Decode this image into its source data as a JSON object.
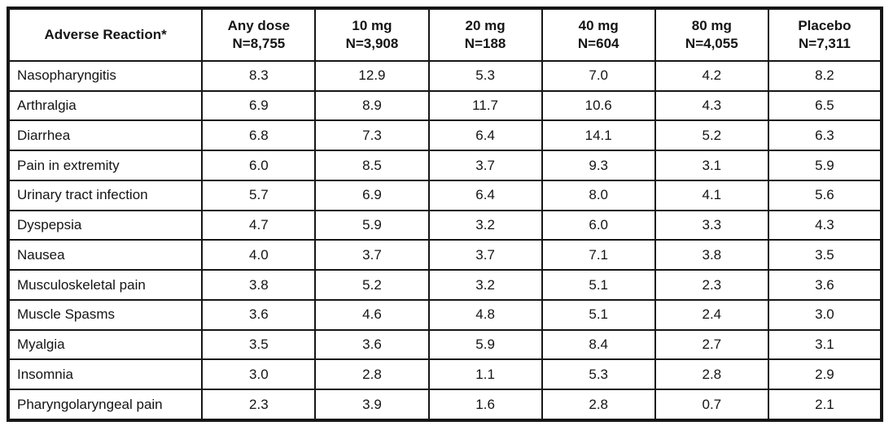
{
  "table": {
    "header": {
      "reaction_label": "Adverse Reaction*",
      "columns": [
        {
          "dose": "Any dose",
          "n": "N=8,755"
        },
        {
          "dose": "10 mg",
          "n": "N=3,908"
        },
        {
          "dose": "20 mg",
          "n": "N=188"
        },
        {
          "dose": "40 mg",
          "n": "N=604"
        },
        {
          "dose": "80 mg",
          "n": "N=4,055"
        },
        {
          "dose": "Placebo",
          "n": "N=7,311"
        }
      ]
    },
    "rows": [
      {
        "reaction": "Nasopharyngitis",
        "values": [
          "8.3",
          "12.9",
          "5.3",
          "7.0",
          "4.2",
          "8.2"
        ]
      },
      {
        "reaction": "Arthralgia",
        "values": [
          "6.9",
          "8.9",
          "11.7",
          "10.6",
          "4.3",
          "6.5"
        ]
      },
      {
        "reaction": "Diarrhea",
        "values": [
          "6.8",
          "7.3",
          "6.4",
          "14.1",
          "5.2",
          "6.3"
        ]
      },
      {
        "reaction": "Pain in extremity",
        "values": [
          "6.0",
          "8.5",
          "3.7",
          "9.3",
          "3.1",
          "5.9"
        ]
      },
      {
        "reaction": "Urinary tract infection",
        "values": [
          "5.7",
          "6.9",
          "6.4",
          "8.0",
          "4.1",
          "5.6"
        ]
      },
      {
        "reaction": "Dyspepsia",
        "values": [
          "4.7",
          "5.9",
          "3.2",
          "6.0",
          "3.3",
          "4.3"
        ]
      },
      {
        "reaction": "Nausea",
        "values": [
          "4.0",
          "3.7",
          "3.7",
          "7.1",
          "3.8",
          "3.5"
        ]
      },
      {
        "reaction": "Musculoskeletal pain",
        "values": [
          "3.8",
          "5.2",
          "3.2",
          "5.1",
          "2.3",
          "3.6"
        ]
      },
      {
        "reaction": "Muscle Spasms",
        "values": [
          "3.6",
          "4.6",
          "4.8",
          "5.1",
          "2.4",
          "3.0"
        ]
      },
      {
        "reaction": "Myalgia",
        "values": [
          "3.5",
          "3.6",
          "5.9",
          "8.4",
          "2.7",
          "3.1"
        ]
      },
      {
        "reaction": "Insomnia",
        "values": [
          "3.0",
          "2.8",
          "1.1",
          "5.3",
          "2.8",
          "2.9"
        ]
      },
      {
        "reaction": "Pharyngolaryngeal pain",
        "values": [
          "2.3",
          "3.9",
          "1.6",
          "2.8",
          "0.7",
          "2.1"
        ]
      }
    ]
  }
}
